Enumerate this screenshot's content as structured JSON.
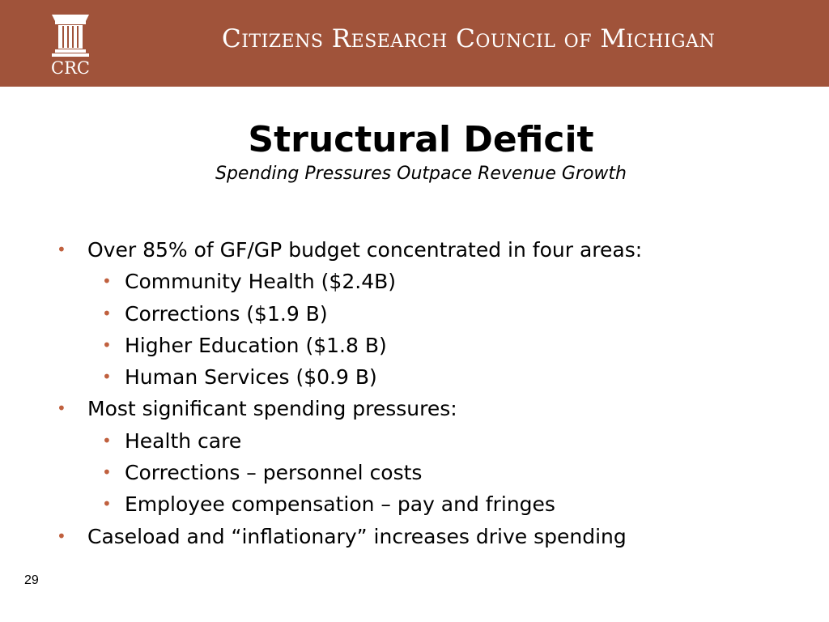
{
  "header": {
    "logo_text": "CRC",
    "org_name": "Citizens Research Council of Michigan",
    "background_color": "#a0533a"
  },
  "title": "Structural Deficit",
  "subtitle": "Spending Pressures Outpace Revenue Growth",
  "bullets": [
    {
      "level": 1,
      "text": "Over 85% of GF/GP budget concentrated in four areas:"
    },
    {
      "level": 2,
      "text": "Community Health ($2.4B)"
    },
    {
      "level": 2,
      "text": "Corrections ($1.9 B)"
    },
    {
      "level": 2,
      "text": "Higher Education ($1.8 B)"
    },
    {
      "level": 2,
      "text": "Human Services ($0.9 B)"
    },
    {
      "level": 1,
      "text": "Most significant spending pressures:"
    },
    {
      "level": 2,
      "text": "Health care"
    },
    {
      "level": 2,
      "text": "Corrections – personnel costs"
    },
    {
      "level": 2,
      "text": "Employee compensation – pay and fringes"
    },
    {
      "level": 1,
      "text": "Caseload and “inflationary” increases drive spending"
    }
  ],
  "bullet_glyph": "•",
  "bullet_color": "#c0603e",
  "page_number": "29"
}
